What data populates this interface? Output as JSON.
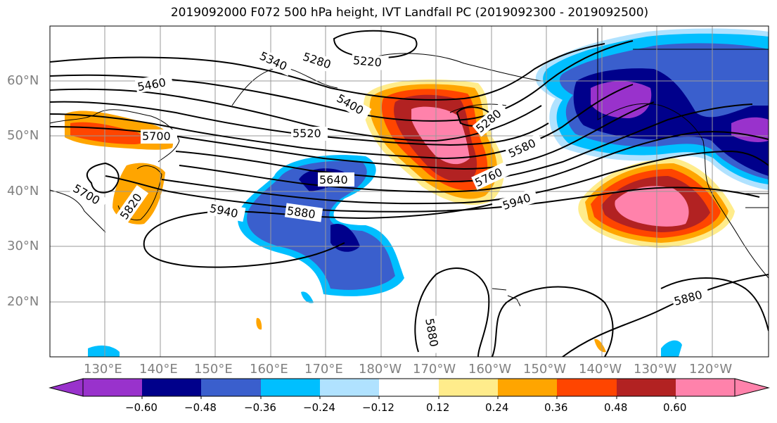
{
  "title": "2019092000 F072 500 hPa height, IVT Landfall PC (2019092300 - 2019092500)",
  "lon_labels": [
    "130°E",
    "140°E",
    "150°E",
    "160°E",
    "170°E",
    "180°W",
    "170°W",
    "160°W",
    "150°W",
    "140°W",
    "130°W",
    "120°W"
  ],
  "lat_labels": [
    "60°N",
    "50°N",
    "40°N",
    "30°N",
    "20°N"
  ],
  "contour_labels": [
    "5340",
    "5280",
    "5220",
    "5460",
    "5400",
    "5280",
    "5700",
    "5520",
    "5580",
    "5640",
    "5760",
    "5700",
    "5820",
    "5940",
    "5880",
    "5940",
    "5880",
    "5880"
  ],
  "colorbar": {
    "tick_labels": [
      "−0.60",
      "−0.48",
      "−0.36",
      "−0.24",
      "−0.12",
      "0.12",
      "0.24",
      "0.36",
      "0.48",
      "0.60"
    ],
    "colors": [
      "#9932cc",
      "#00008b",
      "#3a5fcd",
      "#00bfff",
      "#b0e2ff",
      "#ffffff",
      "#ffec8b",
      "#ffa500",
      "#ff4500",
      "#b22222",
      "#ff82ab",
      "#ff82ab"
    ]
  }
}
